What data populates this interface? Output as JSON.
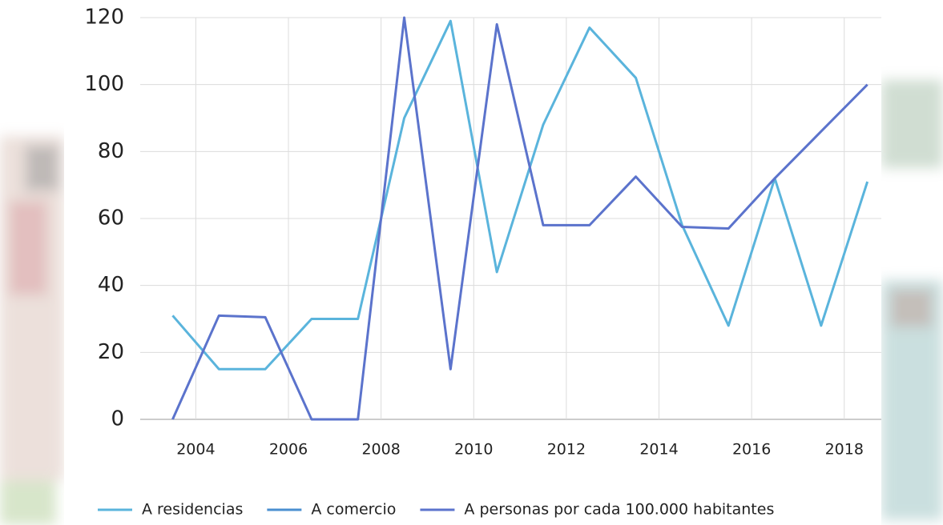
{
  "chart_data": {
    "type": "line",
    "x": [
      2003.5,
      2004.5,
      2005.5,
      2006.5,
      2007.5,
      2008.5,
      2009.5,
      2010.5,
      2011.5,
      2012.5,
      2013.5,
      2014.5,
      2015.5,
      2016.5,
      2017.5,
      2018.5
    ],
    "series": [
      {
        "name": "A residencias",
        "color": "#5ab4dc",
        "values": [
          31,
          15,
          15,
          30,
          30,
          90,
          119,
          44,
          88,
          117,
          102,
          58,
          28,
          72,
          28,
          71
        ]
      },
      {
        "name": "A comercio",
        "color": "#4a8fd0",
        "values": [
          null,
          null,
          null,
          null,
          null,
          null,
          null,
          null,
          null,
          null,
          null,
          null,
          null,
          null,
          null,
          null
        ]
      },
      {
        "name": "A personas por cada 100.000 habitantes",
        "color": "#5b73cc",
        "values": [
          0,
          31,
          30.5,
          0,
          0,
          120,
          15,
          118,
          58,
          58,
          72.5,
          57.5,
          57,
          72,
          86,
          100
        ]
      }
    ],
    "xlim": [
      2002.8,
      2018.8
    ],
    "xticks": [
      2004,
      2006,
      2008,
      2010,
      2012,
      2014,
      2016,
      2018
    ],
    "ylim": [
      0,
      120
    ],
    "yticks": [
      0,
      20,
      40,
      60,
      80,
      100,
      120
    ],
    "grid": true
  }
}
